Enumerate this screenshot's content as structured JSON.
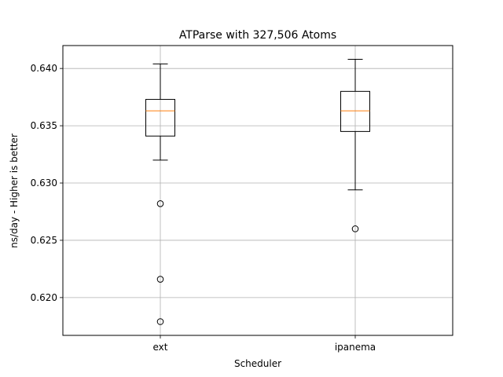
{
  "chart_data": {
    "type": "box",
    "title": "ATParse with 327,506 Atoms",
    "xlabel": "Scheduler",
    "ylabel": "ns/day - Higher is better",
    "categories": [
      "ext",
      "ipanema"
    ],
    "ylim": [
      0.6167,
      0.642
    ],
    "yticks": [
      0.62,
      0.625,
      0.63,
      0.635,
      0.64
    ],
    "ytick_labels": [
      "0.620",
      "0.625",
      "0.630",
      "0.635",
      "0.640"
    ],
    "grid": true,
    "boxes": [
      {
        "name": "ext",
        "whisker_low": 0.632,
        "q1": 0.6341,
        "median": 0.6363,
        "q3": 0.6373,
        "whisker_high": 0.6404,
        "outliers": [
          0.6282,
          0.6216,
          0.6179
        ]
      },
      {
        "name": "ipanema",
        "whisker_low": 0.6294,
        "q1": 0.6345,
        "median": 0.6363,
        "q3": 0.638,
        "whisker_high": 0.6408,
        "outliers": [
          0.626
        ]
      }
    ],
    "colors": {
      "box": "#000000",
      "median": "#ff7f0e",
      "grid": "#b0b0b0"
    }
  }
}
